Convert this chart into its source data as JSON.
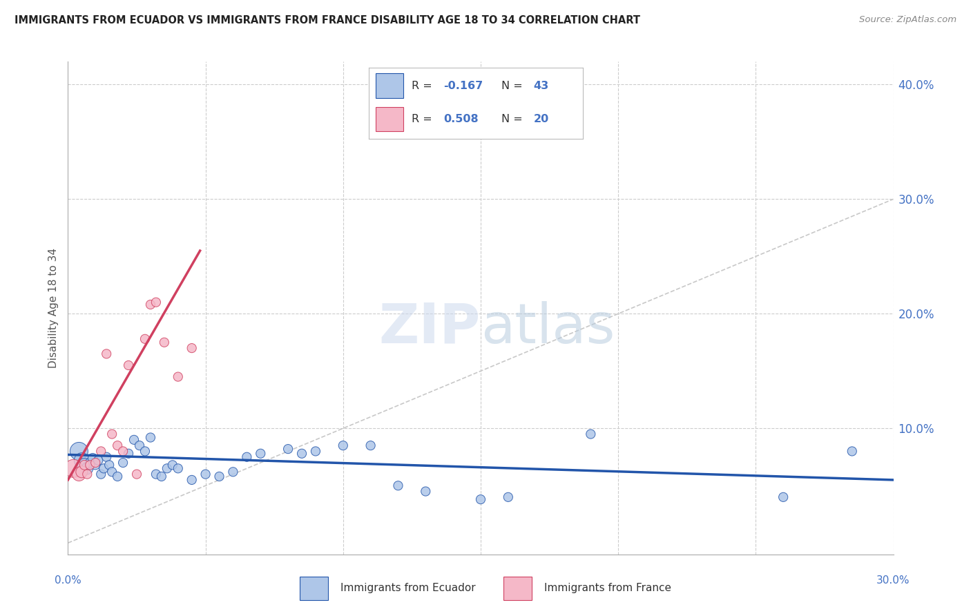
{
  "title": "IMMIGRANTS FROM ECUADOR VS IMMIGRANTS FROM FRANCE DISABILITY AGE 18 TO 34 CORRELATION CHART",
  "source": "Source: ZipAtlas.com",
  "ylabel": "Disability Age 18 to 34",
  "yticks": [
    0.0,
    0.1,
    0.2,
    0.3,
    0.4
  ],
  "ytick_labels": [
    "",
    "10.0%",
    "20.0%",
    "30.0%",
    "40.0%"
  ],
  "xtick_vals": [
    0.0,
    0.05,
    0.1,
    0.15,
    0.2,
    0.25,
    0.3
  ],
  "xlim": [
    0.0,
    0.3
  ],
  "ylim": [
    -0.01,
    0.42
  ],
  "ecuador_color": "#aec6e8",
  "france_color": "#f5b8c8",
  "trendline_ecuador_color": "#2255aa",
  "trendline_france_color": "#d04060",
  "diagonal_color": "#c8c8c8",
  "ecuador_scatter": [
    [
      0.004,
      0.08
    ],
    [
      0.005,
      0.072
    ],
    [
      0.006,
      0.068
    ],
    [
      0.007,
      0.065
    ],
    [
      0.008,
      0.07
    ],
    [
      0.009,
      0.074
    ],
    [
      0.01,
      0.068
    ],
    [
      0.011,
      0.072
    ],
    [
      0.012,
      0.06
    ],
    [
      0.013,
      0.065
    ],
    [
      0.014,
      0.075
    ],
    [
      0.015,
      0.068
    ],
    [
      0.016,
      0.062
    ],
    [
      0.018,
      0.058
    ],
    [
      0.02,
      0.07
    ],
    [
      0.022,
      0.078
    ],
    [
      0.024,
      0.09
    ],
    [
      0.026,
      0.085
    ],
    [
      0.028,
      0.08
    ],
    [
      0.03,
      0.092
    ],
    [
      0.032,
      0.06
    ],
    [
      0.034,
      0.058
    ],
    [
      0.036,
      0.065
    ],
    [
      0.038,
      0.068
    ],
    [
      0.04,
      0.065
    ],
    [
      0.045,
      0.055
    ],
    [
      0.05,
      0.06
    ],
    [
      0.055,
      0.058
    ],
    [
      0.06,
      0.062
    ],
    [
      0.065,
      0.075
    ],
    [
      0.07,
      0.078
    ],
    [
      0.08,
      0.082
    ],
    [
      0.085,
      0.078
    ],
    [
      0.09,
      0.08
    ],
    [
      0.1,
      0.085
    ],
    [
      0.11,
      0.085
    ],
    [
      0.12,
      0.05
    ],
    [
      0.13,
      0.045
    ],
    [
      0.15,
      0.038
    ],
    [
      0.16,
      0.04
    ],
    [
      0.19,
      0.095
    ],
    [
      0.26,
      0.04
    ],
    [
      0.285,
      0.08
    ]
  ],
  "france_scatter": [
    [
      0.002,
      0.065
    ],
    [
      0.004,
      0.06
    ],
    [
      0.005,
      0.062
    ],
    [
      0.006,
      0.068
    ],
    [
      0.007,
      0.06
    ],
    [
      0.008,
      0.068
    ],
    [
      0.01,
      0.07
    ],
    [
      0.012,
      0.08
    ],
    [
      0.014,
      0.165
    ],
    [
      0.016,
      0.095
    ],
    [
      0.018,
      0.085
    ],
    [
      0.02,
      0.08
    ],
    [
      0.022,
      0.155
    ],
    [
      0.025,
      0.06
    ],
    [
      0.028,
      0.178
    ],
    [
      0.03,
      0.208
    ],
    [
      0.032,
      0.21
    ],
    [
      0.035,
      0.175
    ],
    [
      0.04,
      0.145
    ],
    [
      0.045,
      0.17
    ]
  ],
  "ecuador_trendline": [
    [
      0.0,
      0.077
    ],
    [
      0.3,
      0.055
    ]
  ],
  "france_trendline": [
    [
      0.0,
      0.055
    ],
    [
      0.048,
      0.255
    ]
  ],
  "ecuador_sizes": [
    350,
    250,
    200,
    150,
    100,
    100,
    90,
    90,
    90,
    90,
    90,
    90,
    90,
    90,
    90,
    90,
    90,
    90,
    90,
    90,
    90,
    90,
    90,
    90,
    90,
    90,
    90,
    90,
    90,
    90,
    90,
    90,
    90,
    90,
    90,
    90,
    90,
    90,
    90,
    90,
    90,
    90,
    90
  ],
  "france_sizes": [
    350,
    200,
    150,
    100,
    90,
    90,
    90,
    90,
    90,
    90,
    90,
    90,
    90,
    90,
    90,
    90,
    90,
    90,
    90,
    90
  ]
}
